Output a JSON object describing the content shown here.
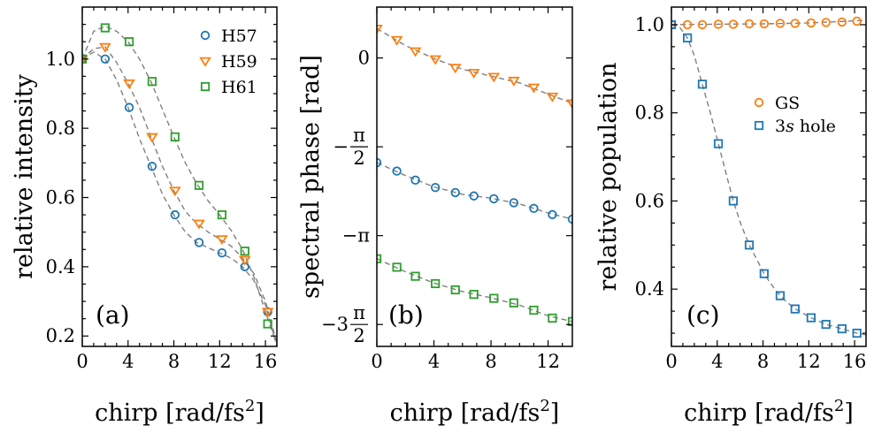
{
  "colors": {
    "blue": "#1f77b4",
    "orange": "#ff7f0e",
    "green": "#2ca02c",
    "fit_line": "#808080"
  },
  "chart_data": [
    {
      "type": "scatter",
      "panel_label": "(a)",
      "xlabel": "chirp [rad/fs²]",
      "ylabel": "relative intensity",
      "xlim": [
        0,
        17
      ],
      "ylim": [
        0.17,
        1.15
      ],
      "xticks": [
        0,
        4,
        8,
        12,
        16
      ],
      "xtick_labels": [
        "0",
        "4",
        "8",
        "12",
        "16"
      ],
      "yticks": [
        0.2,
        0.4,
        0.6,
        0.8,
        1.0
      ],
      "ytick_labels": [
        "0.2",
        "0.4",
        "0.6",
        "0.8",
        "1.0"
      ],
      "legend_position": "top-right",
      "series": [
        {
          "name": "H57",
          "marker": "circle",
          "color": "#1f77b4",
          "x": [
            0,
            2,
            4.1,
            6.1,
            8.1,
            10.2,
            12.2,
            14.2,
            16.2
          ],
          "y": [
            1.0,
            1.0,
            0.86,
            0.69,
            0.55,
            0.47,
            0.44,
            0.4,
            0.27
          ],
          "fit": [
            [
              0,
              1.0
            ],
            [
              1,
              1.02
            ],
            [
              2,
              1.0
            ],
            [
              3,
              0.94
            ],
            [
              4,
              0.86
            ],
            [
              5,
              0.77
            ],
            [
              6,
              0.69
            ],
            [
              7,
              0.61
            ],
            [
              8,
              0.55
            ],
            [
              9,
              0.5
            ],
            [
              10,
              0.47
            ],
            [
              11,
              0.455
            ],
            [
              12,
              0.44
            ],
            [
              13,
              0.425
            ],
            [
              14,
              0.4
            ],
            [
              15,
              0.36
            ],
            [
              16,
              0.29
            ],
            [
              16.5,
              0.23
            ],
            [
              17,
              0.17
            ]
          ]
        },
        {
          "name": "H59",
          "marker": "triangle-down",
          "color": "#ff7f0e",
          "x": [
            0,
            2,
            4.1,
            6.1,
            8.1,
            10.2,
            12.2,
            14.2,
            16.2
          ],
          "y": [
            1.0,
            1.035,
            0.93,
            0.775,
            0.62,
            0.525,
            0.48,
            0.42,
            0.27
          ],
          "fit": [
            [
              0,
              1.0
            ],
            [
              1,
              1.03
            ],
            [
              2,
              1.035
            ],
            [
              3,
              0.99
            ],
            [
              4,
              0.93
            ],
            [
              5,
              0.86
            ],
            [
              6,
              0.775
            ],
            [
              7,
              0.69
            ],
            [
              8,
              0.62
            ],
            [
              9,
              0.56
            ],
            [
              10,
              0.525
            ],
            [
              11,
              0.5
            ],
            [
              12,
              0.48
            ],
            [
              13,
              0.46
            ],
            [
              14,
              0.425
            ],
            [
              15,
              0.38
            ],
            [
              16,
              0.3
            ],
            [
              16.5,
              0.24
            ],
            [
              17,
              0.18
            ]
          ]
        },
        {
          "name": "H61",
          "marker": "square",
          "color": "#2ca02c",
          "x": [
            0,
            2,
            4.1,
            6.1,
            8.1,
            10.2,
            12.2,
            14.2,
            16.2
          ],
          "y": [
            1.0,
            1.09,
            1.05,
            0.935,
            0.775,
            0.635,
            0.55,
            0.445,
            0.235
          ],
          "fit": [
            [
              0,
              1.0
            ],
            [
              1,
              1.08
            ],
            [
              2,
              1.095
            ],
            [
              3,
              1.08
            ],
            [
              4,
              1.05
            ],
            [
              5,
              1.0
            ],
            [
              6,
              0.935
            ],
            [
              7,
              0.855
            ],
            [
              8,
              0.775
            ],
            [
              9,
              0.7
            ],
            [
              10,
              0.64
            ],
            [
              11,
              0.59
            ],
            [
              12,
              0.55
            ],
            [
              13,
              0.505
            ],
            [
              14,
              0.45
            ],
            [
              15,
              0.37
            ],
            [
              16,
              0.27
            ],
            [
              16.5,
              0.22
            ],
            [
              17,
              0.18
            ]
          ]
        }
      ]
    },
    {
      "type": "scatter",
      "panel_label": "(b)",
      "xlabel": "chirp [rad/fs²]",
      "ylabel": "spectral phase [rad]",
      "xlim": [
        0,
        13.7
      ],
      "ylim": [
        -5.1,
        0.9
      ],
      "xticks": [
        0,
        4,
        8,
        12
      ],
      "xtick_labels": [
        "0",
        "4",
        "8",
        "12"
      ],
      "yticks": [
        0,
        -1.5708,
        -3.1416,
        -4.7124
      ],
      "ytick_labels": [
        {
          "sign": "",
          "coef": "",
          "num": "0",
          "den": ""
        },
        {
          "sign": "−",
          "coef": "",
          "num": "π",
          "den": "2"
        },
        {
          "sign": "−",
          "coef": "",
          "num": "π",
          "den": ""
        },
        {
          "sign": "−",
          "coef": "3",
          "num": "π",
          "den": "2"
        }
      ],
      "series": [
        {
          "marker": "triangle-down",
          "color": "#ff7f0e",
          "x": [
            0,
            1.4,
            2.7,
            4.1,
            5.5,
            6.8,
            8.2,
            9.6,
            11,
            12.3,
            13.7
          ],
          "y": [
            0.52,
            0.32,
            0.12,
            -0.02,
            -0.17,
            -0.26,
            -0.33,
            -0.4,
            -0.52,
            -0.68,
            -0.8
          ],
          "fit": [
            [
              0,
              0.52
            ],
            [
              2,
              0.22
            ],
            [
              4,
              -0.01
            ],
            [
              6,
              -0.2
            ],
            [
              8,
              -0.32
            ],
            [
              10,
              -0.44
            ],
            [
              12,
              -0.64
            ],
            [
              13.7,
              -0.8
            ]
          ]
        },
        {
          "marker": "circle",
          "color": "#1f77b4",
          "x": [
            0,
            1.4,
            2.7,
            4.1,
            5.5,
            6.8,
            8.2,
            9.6,
            11,
            12.3,
            13.7
          ],
          "y": [
            -1.85,
            -2.0,
            -2.16,
            -2.29,
            -2.38,
            -2.44,
            -2.49,
            -2.56,
            -2.66,
            -2.77,
            -2.85
          ],
          "fit": [
            [
              0,
              -1.85
            ],
            [
              2,
              -2.08
            ],
            [
              4,
              -2.28
            ],
            [
              6,
              -2.41
            ],
            [
              8,
              -2.48
            ],
            [
              10,
              -2.58
            ],
            [
              12,
              -2.74
            ],
            [
              13.7,
              -2.85
            ]
          ]
        },
        {
          "marker": "square",
          "color": "#2ca02c",
          "x": [
            0,
            1.4,
            2.7,
            4.1,
            5.5,
            6.8,
            8.2,
            9.6,
            11,
            12.3,
            13.7
          ],
          "y": [
            -3.55,
            -3.7,
            -3.86,
            -3.99,
            -4.1,
            -4.18,
            -4.25,
            -4.33,
            -4.46,
            -4.6,
            -4.66
          ],
          "fit": [
            [
              0,
              -3.55
            ],
            [
              2,
              -3.78
            ],
            [
              4,
              -3.98
            ],
            [
              6,
              -4.13
            ],
            [
              8,
              -4.24
            ],
            [
              10,
              -4.37
            ],
            [
              12,
              -4.56
            ],
            [
              13.7,
              -4.66
            ]
          ]
        }
      ]
    },
    {
      "type": "scatter",
      "panel_label": "(c)",
      "xlabel": "chirp [rad/fs²]",
      "ylabel": "relative population",
      "xlim": [
        0,
        17
      ],
      "ylim": [
        0.27,
        1.04
      ],
      "xticks": [
        0,
        4,
        8,
        12,
        16
      ],
      "xtick_labels": [
        "0",
        "4",
        "8",
        "12",
        "16"
      ],
      "yticks": [
        0.4,
        0.6,
        0.8,
        1.0
      ],
      "ytick_labels": [
        "0.4",
        "0.6",
        "0.8",
        "1.0"
      ],
      "legend_position": "center-right",
      "series": [
        {
          "name": "GS",
          "marker": "circle",
          "color": "#ff7f0e",
          "x": [
            0,
            1.4,
            2.7,
            4.1,
            5.4,
            6.8,
            8.1,
            9.5,
            10.8,
            12.2,
            13.5,
            14.9,
            16.2
          ],
          "y": [
            1.0,
            1.0,
            1.0,
            1.001,
            1.001,
            1.002,
            1.002,
            1.003,
            1.003,
            1.004,
            1.005,
            1.006,
            1.008
          ],
          "fit": [
            [
              0,
              1.0
            ],
            [
              4,
              1.001
            ],
            [
              8,
              1.002
            ],
            [
              12,
              1.004
            ],
            [
              17,
              1.01
            ]
          ]
        },
        {
          "name": "3s hole",
          "marker": "square",
          "color": "#1f77b4",
          "x": [
            0,
            1.4,
            2.7,
            4.1,
            5.4,
            6.8,
            8.1,
            9.5,
            10.8,
            12.2,
            13.5,
            14.9,
            16.2
          ],
          "y": [
            1.0,
            0.97,
            0.865,
            0.73,
            0.6,
            0.5,
            0.435,
            0.385,
            0.355,
            0.335,
            0.32,
            0.31,
            0.3
          ],
          "fit": [
            [
              0,
              1.0
            ],
            [
              0.7,
              0.995
            ],
            [
              1.4,
              0.97
            ],
            [
              2,
              0.93
            ],
            [
              2.7,
              0.865
            ],
            [
              3.4,
              0.8
            ],
            [
              4.1,
              0.73
            ],
            [
              4.8,
              0.66
            ],
            [
              5.4,
              0.6
            ],
            [
              6.1,
              0.545
            ],
            [
              6.8,
              0.5
            ],
            [
              7.5,
              0.465
            ],
            [
              8.1,
              0.435
            ],
            [
              8.8,
              0.408
            ],
            [
              9.5,
              0.385
            ],
            [
              10.2,
              0.368
            ],
            [
              10.8,
              0.355
            ],
            [
              12.2,
              0.335
            ],
            [
              13.5,
              0.32
            ],
            [
              14.9,
              0.31
            ],
            [
              16.2,
              0.3
            ],
            [
              17,
              0.296
            ]
          ]
        }
      ]
    }
  ]
}
